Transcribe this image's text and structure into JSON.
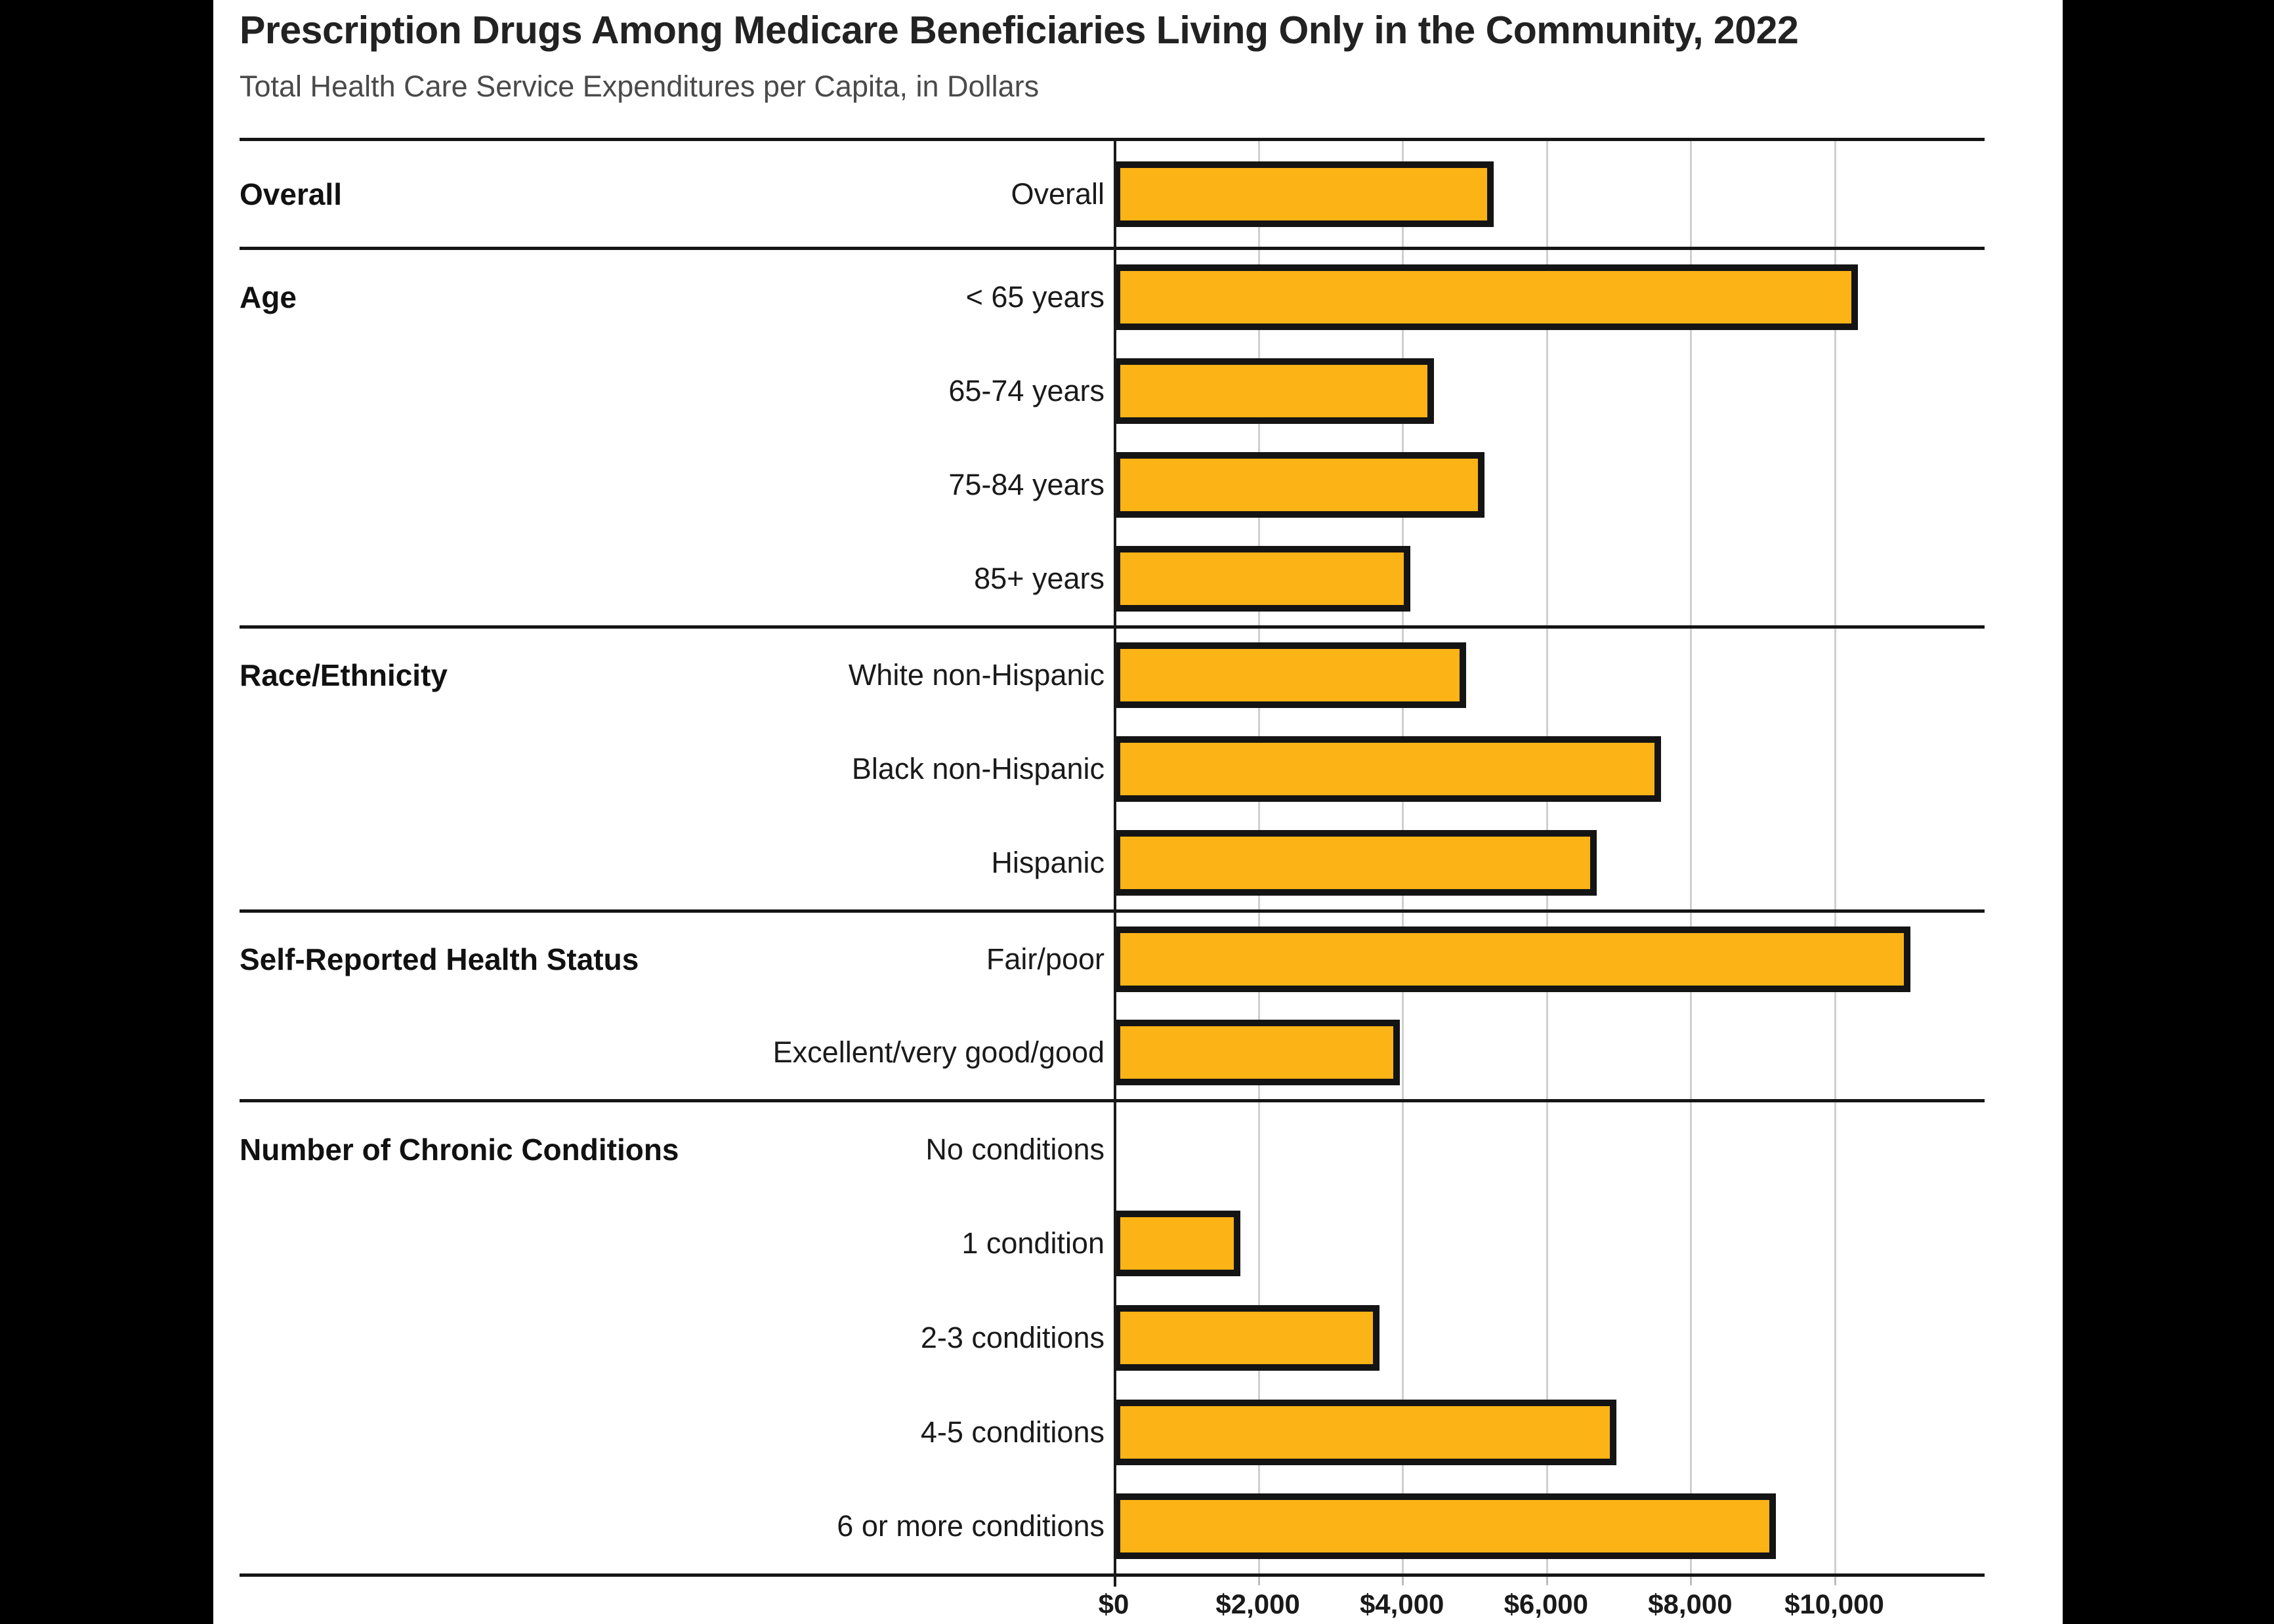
{
  "title": "Prescription Drugs Among Medicare Beneficiaries Living Only in the Community, 2022",
  "subtitle": "Total Health Care Service Expenditures per Capita, in Dollars",
  "chart_data": {
    "type": "bar",
    "orientation": "horizontal",
    "unit": "dollars per capita",
    "title": "Prescription Drugs Among Medicare Beneficiaries Living Only in the Community, 2022",
    "subtitle": "Total Health Care Service Expenditures per Capita, in Dollars",
    "xlim": [
      0,
      12150
    ],
    "grid": true,
    "tick_values": [
      0,
      2000,
      4000,
      6000,
      8000,
      10000
    ],
    "tick_labels": [
      "$0",
      "$2,000",
      "$4,000",
      "$6,000",
      "$8,000",
      "$10,000"
    ],
    "bar_color": "#FCB316",
    "bar_border_color": "#141414",
    "sections": [
      {
        "group": "Overall",
        "rows": [
          {
            "label": "Overall",
            "value": 5270
          }
        ]
      },
      {
        "group": "Age",
        "rows": [
          {
            "label": "< 65 years",
            "value": 10330
          },
          {
            "label": "65-74 years",
            "value": 4440
          },
          {
            "label": "75-84 years",
            "value": 5150
          },
          {
            "label": "85+ years",
            "value": 4120
          }
        ]
      },
      {
        "group": "Race/Ethnicity",
        "rows": [
          {
            "label": "White non-Hispanic",
            "value": 4890
          },
          {
            "label": "Black non-Hispanic",
            "value": 7600
          },
          {
            "label": "Hispanic",
            "value": 6700
          }
        ]
      },
      {
        "group": "Self-Reported Health Status",
        "rows": [
          {
            "label": "Fair/poor",
            "value": 11060
          },
          {
            "label": "Excellent/very good/good",
            "value": 3970
          }
        ]
      },
      {
        "group": "Number of Chronic Conditions",
        "rows": [
          {
            "label": "No conditions",
            "value": 0
          },
          {
            "label": "1 condition",
            "value": 1760
          },
          {
            "label": "2-3 conditions",
            "value": 3690
          },
          {
            "label": "4-5 conditions",
            "value": 6980
          },
          {
            "label": "6 or more conditions",
            "value": 9190
          }
        ]
      }
    ]
  }
}
